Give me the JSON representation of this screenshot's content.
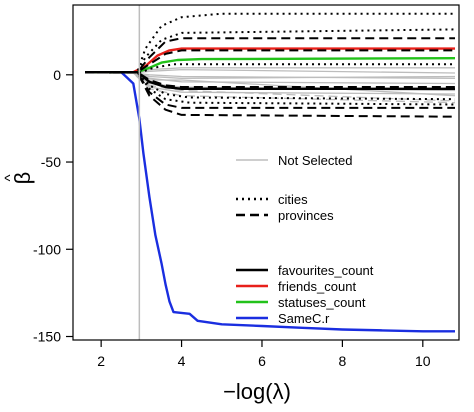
{
  "chart_data": {
    "type": "line",
    "xlabel": "−log(λ)",
    "ylabel_main": "β",
    "ylabel_hat": "^",
    "xlim": [
      1.3,
      10.9
    ],
    "ylim": [
      -152,
      40
    ],
    "xticks": [
      2,
      4,
      6,
      8,
      10
    ],
    "yticks": [
      -150,
      -100,
      -50,
      0
    ],
    "grid": false,
    "vline_x": 2.95,
    "legend": {
      "placement": "center-right",
      "entries": [
        {
          "label": "Not Selected",
          "color": "#bdbdbd",
          "dash": "solid"
        },
        {
          "label": "cities",
          "color": "#000000",
          "dash": "dotted"
        },
        {
          "label": "provinces",
          "color": "#000000",
          "dash": "dashed"
        },
        {
          "label": "favourites_count",
          "color": "#000000",
          "dash": "solid"
        },
        {
          "label": "friends_count",
          "color": "#e8201a",
          "dash": "solid"
        },
        {
          "label": "statuses_count",
          "color": "#22c21a",
          "dash": "solid"
        },
        {
          "label": "SameC.r",
          "color": "#1a2ee0",
          "dash": "solid"
        }
      ]
    },
    "series": [
      {
        "name": "SameC.r",
        "color": "#1a2ee0",
        "dash": "solid",
        "width": 2.4,
        "points": [
          [
            1.6,
            1.5
          ],
          [
            2.5,
            1.5
          ],
          [
            2.8,
            -5
          ],
          [
            2.95,
            -25
          ],
          [
            3.05,
            -45
          ],
          [
            3.2,
            -70
          ],
          [
            3.35,
            -92
          ],
          [
            3.5,
            -108
          ],
          [
            3.6,
            -120
          ],
          [
            3.7,
            -130
          ],
          [
            3.8,
            -136
          ],
          [
            4.2,
            -137
          ],
          [
            4.4,
            -141
          ],
          [
            5.0,
            -143
          ],
          [
            6.0,
            -144
          ],
          [
            7.0,
            -145
          ],
          [
            8.0,
            -146
          ],
          [
            9.0,
            -146.5
          ],
          [
            10.0,
            -147
          ],
          [
            10.8,
            -147
          ]
        ]
      },
      {
        "name": "friends_count",
        "color": "#e8201a",
        "dash": "solid",
        "width": 2.4,
        "points": [
          [
            1.6,
            1.5
          ],
          [
            2.8,
            1.5
          ],
          [
            3.1,
            5
          ],
          [
            3.4,
            11
          ],
          [
            3.7,
            14
          ],
          [
            4.0,
            15
          ],
          [
            10.8,
            15
          ]
        ]
      },
      {
        "name": "statuses_count",
        "color": "#22c21a",
        "dash": "solid",
        "width": 2.4,
        "points": [
          [
            1.6,
            1.5
          ],
          [
            2.9,
            1.5
          ],
          [
            3.2,
            4
          ],
          [
            3.5,
            7
          ],
          [
            3.9,
            8.5
          ],
          [
            4.5,
            9
          ],
          [
            10.8,
            9.5
          ]
        ]
      },
      {
        "name": "favourites_count",
        "color": "#000000",
        "dash": "solid",
        "width": 2.4,
        "points": [
          [
            1.6,
            1.5
          ],
          [
            2.9,
            1.5
          ],
          [
            3.2,
            -4
          ],
          [
            3.6,
            -7
          ],
          [
            4.0,
            -8
          ],
          [
            10.8,
            -8
          ]
        ]
      },
      {
        "color": "#000000",
        "dash": "dotted",
        "width": 2,
        "points": [
          [
            1.6,
            1.5
          ],
          [
            2.9,
            1.5
          ],
          [
            3.1,
            15
          ],
          [
            3.5,
            28
          ],
          [
            4.0,
            33
          ],
          [
            5.0,
            35
          ],
          [
            10.8,
            35
          ]
        ]
      },
      {
        "color": "#000000",
        "dash": "dotted",
        "width": 2,
        "points": [
          [
            1.6,
            1.5
          ],
          [
            2.9,
            1.5
          ],
          [
            3.1,
            10
          ],
          [
            3.5,
            20
          ],
          [
            4.0,
            24
          ],
          [
            10.8,
            26
          ]
        ]
      },
      {
        "color": "#000000",
        "dash": "dotted",
        "width": 2,
        "points": [
          [
            1.6,
            1.5
          ],
          [
            2.9,
            1.5
          ],
          [
            3.2,
            -6
          ],
          [
            3.6,
            -11
          ],
          [
            4.2,
            -13
          ],
          [
            10.8,
            -14
          ]
        ]
      },
      {
        "color": "#000000",
        "dash": "dotted",
        "width": 2,
        "points": [
          [
            1.6,
            1.5
          ],
          [
            2.9,
            1.5
          ],
          [
            3.2,
            -8
          ],
          [
            3.6,
            -14
          ],
          [
            4.2,
            -16
          ],
          [
            10.8,
            -17
          ]
        ]
      },
      {
        "color": "#000000",
        "dash": "dotted",
        "width": 2,
        "points": [
          [
            1.6,
            1.5
          ],
          [
            3.0,
            1.5
          ],
          [
            3.3,
            4
          ],
          [
            3.8,
            6
          ],
          [
            10.8,
            6
          ]
        ]
      },
      {
        "color": "#000000",
        "dash": "dashed",
        "width": 2,
        "points": [
          [
            1.6,
            1.5
          ],
          [
            2.9,
            1.5
          ],
          [
            3.2,
            10
          ],
          [
            3.6,
            19
          ],
          [
            4.0,
            21
          ],
          [
            10.8,
            21
          ]
        ]
      },
      {
        "color": "#000000",
        "dash": "dashed",
        "width": 2,
        "points": [
          [
            1.6,
            1.5
          ],
          [
            2.9,
            1.5
          ],
          [
            3.2,
            6
          ],
          [
            3.6,
            12
          ],
          [
            4.0,
            14
          ],
          [
            10.8,
            14
          ]
        ]
      },
      {
        "color": "#000000",
        "dash": "dashed",
        "width": 2,
        "points": [
          [
            1.6,
            1.5
          ],
          [
            2.9,
            1.5
          ],
          [
            3.2,
            -3
          ],
          [
            3.6,
            -6
          ],
          [
            4.0,
            -7
          ],
          [
            10.8,
            -7
          ]
        ]
      },
      {
        "color": "#000000",
        "dash": "dashed",
        "width": 2,
        "points": [
          [
            1.6,
            1.5
          ],
          [
            2.9,
            1.5
          ],
          [
            3.2,
            -10
          ],
          [
            3.6,
            -17
          ],
          [
            4.0,
            -19
          ],
          [
            10.8,
            -19
          ]
        ]
      },
      {
        "color": "#000000",
        "dash": "dashed",
        "width": 2,
        "points": [
          [
            1.6,
            1.5
          ],
          [
            2.9,
            1.5
          ],
          [
            3.2,
            -12
          ],
          [
            3.6,
            -20
          ],
          [
            4.0,
            -23
          ],
          [
            10.8,
            -24
          ]
        ]
      },
      {
        "color": "#bdbdbd",
        "dash": "solid",
        "width": 1.3,
        "points": [
          [
            2.2,
            1
          ],
          [
            2.8,
            1
          ],
          [
            3.2,
            3
          ],
          [
            4.0,
            4
          ],
          [
            10.8,
            4
          ]
        ]
      },
      {
        "color": "#bdbdbd",
        "dash": "solid",
        "width": 1.3,
        "points": [
          [
            2.2,
            1
          ],
          [
            2.8,
            1
          ],
          [
            3.2,
            0
          ],
          [
            4.0,
            -1
          ],
          [
            10.8,
            -2
          ]
        ]
      },
      {
        "color": "#bdbdbd",
        "dash": "solid",
        "width": 1.3,
        "points": [
          [
            2.2,
            1
          ],
          [
            2.8,
            1
          ],
          [
            3.2,
            -2
          ],
          [
            4.0,
            -4
          ],
          [
            10.8,
            -5
          ]
        ]
      },
      {
        "color": "#bdbdbd",
        "dash": "solid",
        "width": 1.3,
        "points": [
          [
            2.2,
            1
          ],
          [
            2.8,
            1
          ],
          [
            3.2,
            -5
          ],
          [
            4.0,
            -7
          ],
          [
            10.8,
            -9
          ]
        ]
      },
      {
        "color": "#bdbdbd",
        "dash": "solid",
        "width": 1.3,
        "points": [
          [
            2.2,
            1
          ],
          [
            2.8,
            1
          ],
          [
            3.2,
            -7
          ],
          [
            4.0,
            -10
          ],
          [
            10.8,
            -11
          ]
        ]
      },
      {
        "color": "#bdbdbd",
        "dash": "solid",
        "width": 1.3,
        "points": [
          [
            2.2,
            1
          ],
          [
            2.8,
            1
          ],
          [
            3.2,
            2
          ],
          [
            4.0,
            3
          ],
          [
            10.8,
            1
          ]
        ]
      },
      {
        "color": "#bdbdbd",
        "dash": "solid",
        "width": 1.3,
        "points": [
          [
            2.2,
            1
          ],
          [
            2.8,
            1
          ],
          [
            3.2,
            -3
          ],
          [
            4.0,
            -3
          ],
          [
            10.8,
            -12
          ]
        ]
      },
      {
        "color": "#bdbdbd",
        "dash": "dashed",
        "width": 1.3,
        "points": [
          [
            2.2,
            1
          ],
          [
            2.8,
            1
          ],
          [
            3.2,
            -6
          ],
          [
            4.0,
            -9
          ],
          [
            10.8,
            -15
          ]
        ]
      },
      {
        "color": "#bdbdbd",
        "dash": "dashed",
        "width": 1.3,
        "points": [
          [
            2.2,
            1
          ],
          [
            2.8,
            1
          ],
          [
            3.2,
            -8
          ],
          [
            4.0,
            -12
          ],
          [
            10.8,
            -16
          ]
        ]
      },
      {
        "color": "#bdbdbd",
        "dash": "solid",
        "width": 1.3,
        "points": [
          [
            2.2,
            1
          ],
          [
            2.8,
            1
          ],
          [
            3.2,
            -1
          ],
          [
            4.0,
            -2
          ],
          [
            10.8,
            -1
          ]
        ]
      }
    ]
  }
}
